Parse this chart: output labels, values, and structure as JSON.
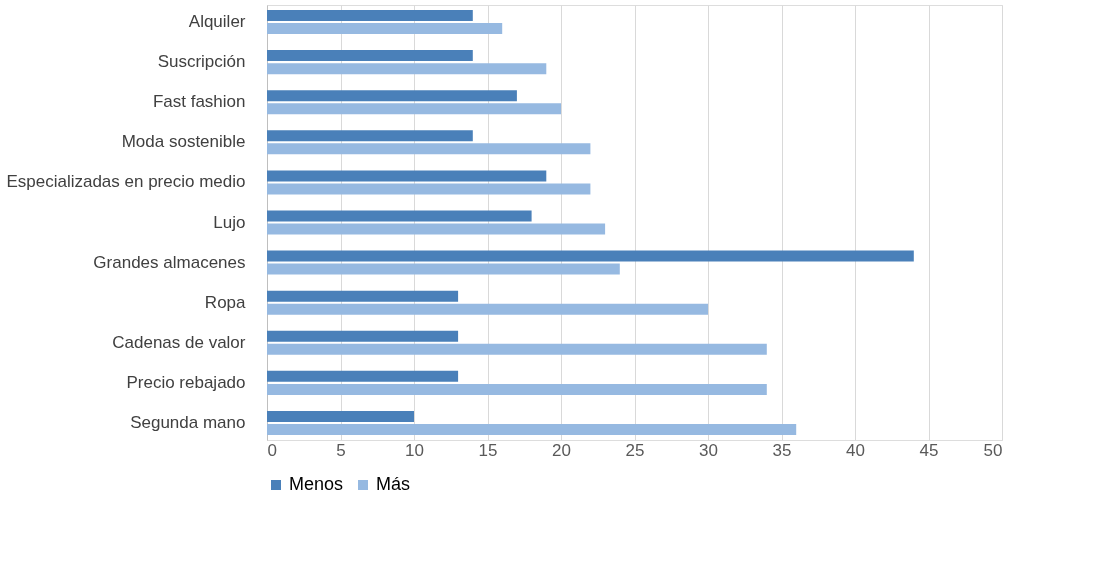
{
  "chart_data": {
    "type": "bar",
    "orientation": "horizontal",
    "categories": [
      "Alquiler",
      "Suscripción",
      "Fast fashion",
      "Moda sostenible",
      "Especializadas en precio medio",
      "Lujo",
      "Grandes almacenes",
      "Ropa",
      "Cadenas de valor",
      "Precio rebajado",
      "Segunda mano"
    ],
    "series": [
      {
        "name": "Menos",
        "color": "#4a80b9",
        "values": [
          14,
          14,
          17,
          14,
          19,
          18,
          44,
          13,
          13,
          13,
          10
        ]
      },
      {
        "name": "Más",
        "color": "#96b9e1",
        "values": [
          16,
          19,
          20,
          22,
          22,
          23,
          24,
          30,
          34,
          34,
          36
        ]
      }
    ],
    "xlim": [
      0,
      50
    ],
    "xticks": [
      0,
      5,
      10,
      15,
      20,
      25,
      30,
      35,
      40,
      45,
      50
    ],
    "grid": "x",
    "legend": "bottom"
  }
}
